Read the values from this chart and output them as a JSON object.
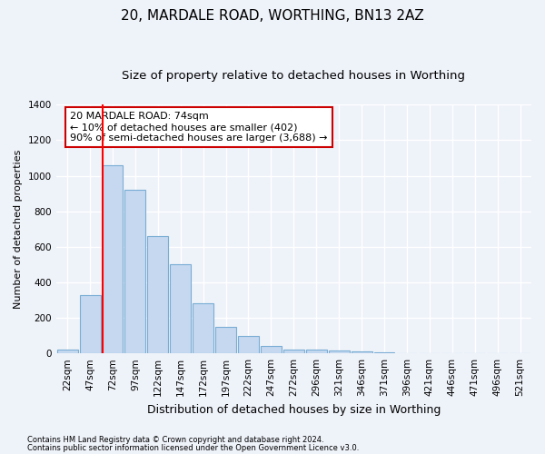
{
  "title_line1": "20, MARDALE ROAD, WORTHING, BN13 2AZ",
  "title_line2": "Size of property relative to detached houses in Worthing",
  "xlabel": "Distribution of detached houses by size in Worthing",
  "ylabel": "Number of detached properties",
  "categories": [
    "22sqm",
    "47sqm",
    "72sqm",
    "97sqm",
    "122sqm",
    "147sqm",
    "172sqm",
    "197sqm",
    "222sqm",
    "247sqm",
    "272sqm",
    "296sqm",
    "321sqm",
    "346sqm",
    "371sqm",
    "396sqm",
    "421sqm",
    "446sqm",
    "471sqm",
    "496sqm",
    "521sqm"
  ],
  "values": [
    20,
    330,
    1060,
    920,
    660,
    500,
    280,
    150,
    100,
    40,
    20,
    20,
    18,
    10,
    5,
    0,
    0,
    0,
    0,
    0,
    0
  ],
  "bar_color": "#c5d8f0",
  "bar_edgecolor": "#7aadd4",
  "red_line_index": 2,
  "annotation_line1": "20 MARDALE ROAD: 74sqm",
  "annotation_line2": "← 10% of detached houses are smaller (402)",
  "annotation_line3": "90% of semi-detached houses are larger (3,688) →",
  "annotation_box_color": "#ffffff",
  "annotation_box_edgecolor": "#cc0000",
  "ylim": [
    0,
    1400
  ],
  "yticks": [
    0,
    200,
    400,
    600,
    800,
    1000,
    1200,
    1400
  ],
  "footnote1": "Contains HM Land Registry data © Crown copyright and database right 2024.",
  "footnote2": "Contains public sector information licensed under the Open Government Licence v3.0.",
  "background_color": "#eef2f9",
  "plot_bg_color": "#eef2f9",
  "grid_color": "#ffffff",
  "title1_fontsize": 11,
  "title2_fontsize": 9.5,
  "xlabel_fontsize": 9,
  "ylabel_fontsize": 8,
  "tick_fontsize": 7.5,
  "annot_fontsize": 8,
  "footnote_fontsize": 6
}
